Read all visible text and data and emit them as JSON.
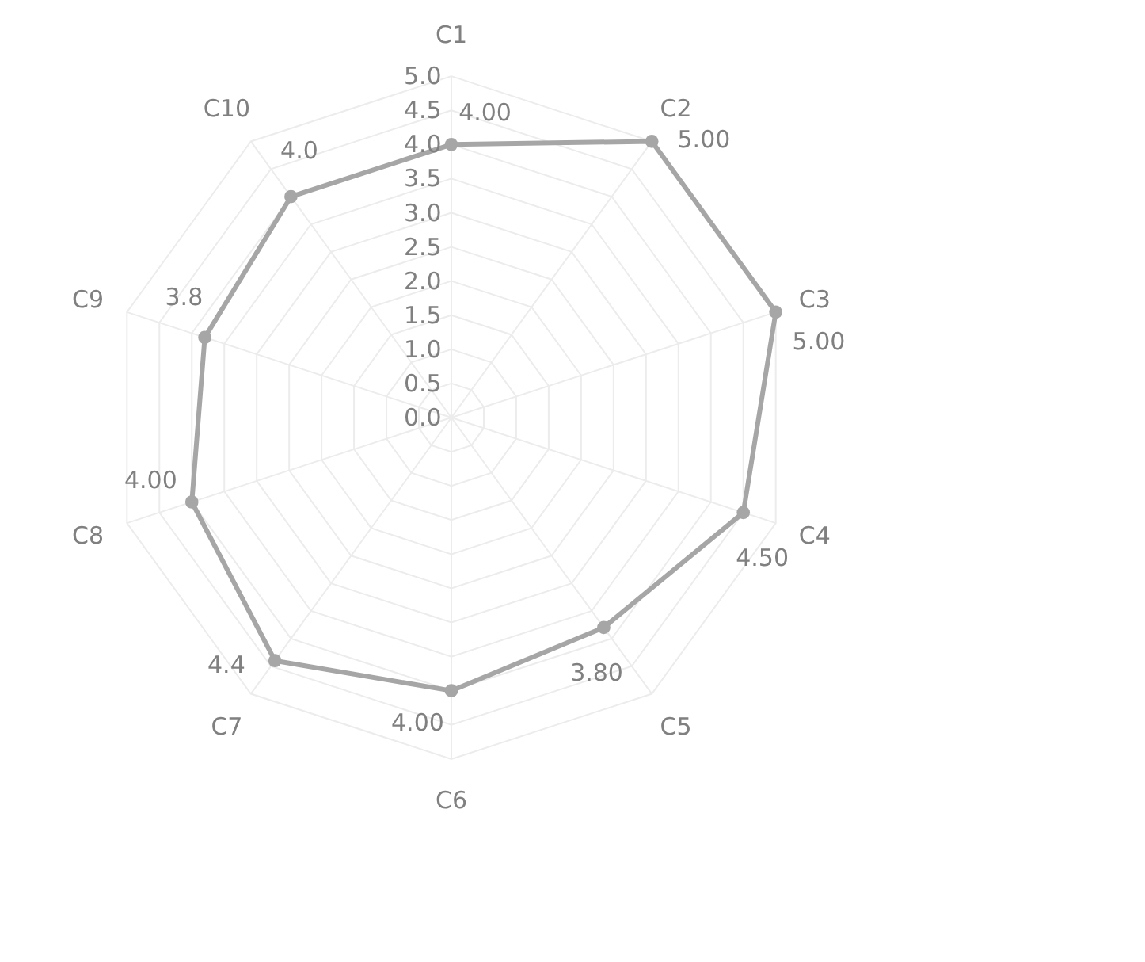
{
  "chart_data": {
    "type": "radar",
    "categories": [
      "C1",
      "C2",
      "C3",
      "C4",
      "C5",
      "C6",
      "C7",
      "C8",
      "C9",
      "C10"
    ],
    "series": [
      {
        "color": "#a6a6a6",
        "values": [
          4.0,
          5.0,
          5.0,
          4.5,
          3.8,
          4.0,
          4.4,
          4.0,
          3.8,
          4.0
        ],
        "value_labels": [
          "4.00",
          "5.00",
          "5.00",
          "4.50",
          "3.80",
          "4.00",
          "4.4",
          "4.00",
          "3.8",
          "4.0"
        ]
      }
    ],
    "ylim": [
      0,
      5
    ],
    "yticks": [
      {
        "value": 0,
        "label": "0.0"
      },
      {
        "value": 0.5,
        "label": "0.5"
      },
      {
        "value": 1,
        "label": "1.0"
      },
      {
        "value": 1.5,
        "label": "1.5"
      },
      {
        "value": 2,
        "label": "2.0"
      },
      {
        "value": 2.5,
        "label": "2.5"
      },
      {
        "value": 3,
        "label": "3.0"
      },
      {
        "value": 3.5,
        "label": "3.5"
      },
      {
        "value": 4,
        "label": "4.0"
      },
      {
        "value": 4.5,
        "label": "4.5"
      },
      {
        "value": 5,
        "label": "5.0"
      }
    ],
    "grid": true,
    "marker": "circle",
    "line_style": "solid"
  }
}
